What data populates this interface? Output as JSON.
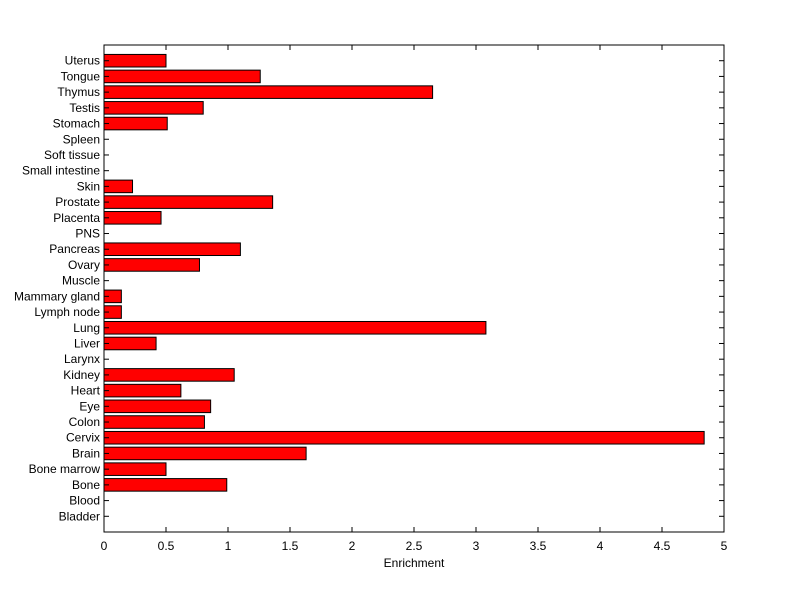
{
  "chart_data": {
    "type": "bar",
    "orientation": "horizontal",
    "title": "",
    "xlabel": "Enrichment",
    "ylabel": "",
    "xlim": [
      0,
      5
    ],
    "xticks": [
      0,
      0.5,
      1,
      1.5,
      2,
      2.5,
      3,
      3.5,
      4,
      4.5,
      5
    ],
    "xtick_labels": [
      "0",
      "0.5",
      "1",
      "1.5",
      "2",
      "2.5",
      "3",
      "3.5",
      "4",
      "4.5",
      "5"
    ],
    "grid": false,
    "legend": "none",
    "bar_color": "#ff0000",
    "bar_edge_color": "#000000",
    "categories": [
      "Bladder",
      "Blood",
      "Bone",
      "Bone marrow",
      "Brain",
      "Cervix",
      "Colon",
      "Eye",
      "Heart",
      "Kidney",
      "Larynx",
      "Liver",
      "Lung",
      "Lymph node",
      "Mammary gland",
      "Muscle",
      "Ovary",
      "Pancreas",
      "PNS",
      "Placenta",
      "Prostate",
      "Skin",
      "Small intestine",
      "Soft tissue",
      "Spleen",
      "Stomach",
      "Testis",
      "Thymus",
      "Tongue",
      "Uterus"
    ],
    "values": [
      0,
      0,
      0.99,
      0.5,
      1.63,
      4.84,
      0.81,
      0.86,
      0.62,
      1.05,
      0,
      0.42,
      3.08,
      0.14,
      0.14,
      0,
      0.77,
      1.1,
      0,
      0.46,
      1.36,
      0.23,
      0,
      0,
      0,
      0.51,
      0.8,
      2.65,
      1.26,
      0.5
    ]
  }
}
